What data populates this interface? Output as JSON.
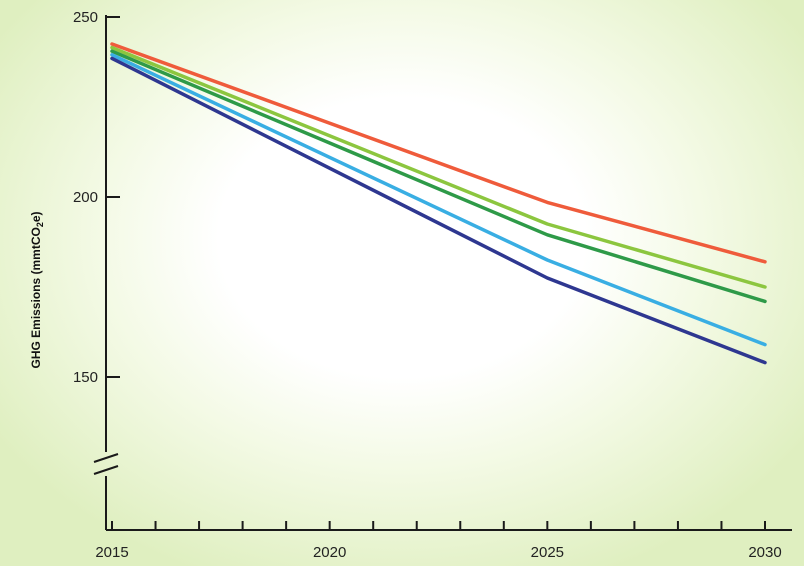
{
  "chart_data": {
    "type": "line",
    "title": "",
    "xlabel": "",
    "ylabel": "GHG Emissions (mmtCO₂e)",
    "ylabel_main": "GHG Emissions (mmtCO",
    "ylabel_sub": "2",
    "ylabel_end": "e)",
    "xlim": [
      2015,
      2030
    ],
    "ylim": [
      150,
      250
    ],
    "y_axis_break": true,
    "grid": false,
    "legend": "none",
    "x_ticks": [
      2015,
      2016,
      2017,
      2018,
      2019,
      2020,
      2021,
      2022,
      2023,
      2024,
      2025,
      2026,
      2027,
      2028,
      2029,
      2030
    ],
    "x_tick_labels": [
      "2015",
      "2020",
      "2025",
      "2030"
    ],
    "y_tick_labels": [
      "250",
      "200",
      "150"
    ],
    "series": [
      {
        "color": "#ef5b3b",
        "x": [
          2015,
          2025,
          2030
        ],
        "y": [
          242.5,
          198.5,
          182
        ]
      },
      {
        "color": "#8cc63f",
        "x": [
          2015,
          2025,
          2030
        ],
        "y": [
          241.5,
          192.5,
          175
        ]
      },
      {
        "color": "#2e9a48",
        "x": [
          2015,
          2025,
          2030
        ],
        "y": [
          240.5,
          189.5,
          171
        ]
      },
      {
        "color": "#39aee3",
        "x": [
          2015,
          2025,
          2030
        ],
        "y": [
          239.5,
          182.5,
          159
        ]
      },
      {
        "color": "#2e3790",
        "x": [
          2015,
          2025,
          2030
        ],
        "y": [
          238.5,
          177.5,
          154
        ]
      }
    ]
  }
}
